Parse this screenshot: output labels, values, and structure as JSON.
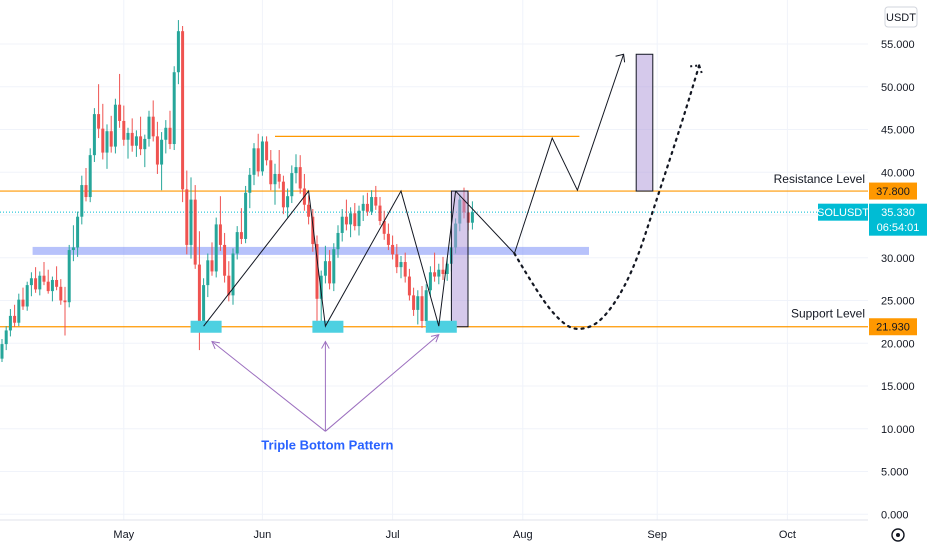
{
  "chart_data": {
    "type": "candlestick",
    "symbol": "SOLUSDT",
    "currency": "USDT",
    "x_labels": [
      "May",
      "Jun",
      "Jul",
      "Aug",
      "Sep",
      "Oct"
    ],
    "y_ticks": [
      "55.000",
      "50.000",
      "45.000",
      "40.000",
      "35.000",
      "30.000",
      "25.000",
      "20.000",
      "15.000",
      "10.000",
      "5.000",
      "0.000"
    ],
    "ylim": [
      0,
      58
    ],
    "last_price": "35.330",
    "countdown": "06:54:01",
    "resistance_level": "37.800",
    "support_level": "21.930",
    "annotations": {
      "resistance_label": "Resistance Level",
      "support_label": "Support Level",
      "pattern_label": "Triple Bottom Pattern"
    },
    "colors": {
      "up": "#26a69a",
      "down": "#ef5350",
      "level_line": "#ff9800",
      "price_line": "#00bcd4",
      "zone": "#7b8ff7",
      "bottom_marker": "#4dd0e1",
      "target_box": "#b39ddb",
      "arrow_pattern": "#9c6fbf",
      "label_blue": "#2962ff"
    },
    "candles": [
      {
        "o": 18.2,
        "h": 20.5,
        "l": 17.8,
        "c": 19.9
      },
      {
        "o": 19.9,
        "h": 22.0,
        "l": 19.2,
        "c": 21.5
      },
      {
        "o": 21.5,
        "h": 24.0,
        "l": 20.8,
        "c": 23.2
      },
      {
        "o": 23.2,
        "h": 24.5,
        "l": 21.9,
        "c": 22.4
      },
      {
        "o": 22.4,
        "h": 25.8,
        "l": 22.0,
        "c": 25.1
      },
      {
        "o": 25.1,
        "h": 26.5,
        "l": 23.9,
        "c": 24.3
      },
      {
        "o": 24.3,
        "h": 27.2,
        "l": 23.8,
        "c": 26.8
      },
      {
        "o": 26.8,
        "h": 28.3,
        "l": 25.5,
        "c": 27.6
      },
      {
        "o": 27.6,
        "h": 28.9,
        "l": 25.9,
        "c": 26.3
      },
      {
        "o": 26.3,
        "h": 28.4,
        "l": 25.6,
        "c": 27.9
      },
      {
        "o": 27.9,
        "h": 29.5,
        "l": 26.8,
        "c": 27.2
      },
      {
        "o": 27.2,
        "h": 28.6,
        "l": 25.8,
        "c": 26.1
      },
      {
        "o": 26.1,
        "h": 27.8,
        "l": 24.9,
        "c": 27.4
      },
      {
        "o": 27.4,
        "h": 29.0,
        "l": 26.2,
        "c": 26.6
      },
      {
        "o": 26.6,
        "h": 27.5,
        "l": 24.5,
        "c": 25.0
      },
      {
        "o": 25.0,
        "h": 26.6,
        "l": 20.9,
        "c": 24.8
      },
      {
        "o": 24.8,
        "h": 31.5,
        "l": 24.2,
        "c": 30.9
      },
      {
        "o": 30.9,
        "h": 33.8,
        "l": 29.6,
        "c": 31.2
      },
      {
        "o": 31.2,
        "h": 35.4,
        "l": 30.1,
        "c": 34.8
      },
      {
        "o": 34.8,
        "h": 39.6,
        "l": 33.9,
        "c": 38.5
      },
      {
        "o": 38.5,
        "h": 40.5,
        "l": 36.6,
        "c": 37.1
      },
      {
        "o": 37.1,
        "h": 42.8,
        "l": 36.5,
        "c": 42.0
      },
      {
        "o": 42.0,
        "h": 47.5,
        "l": 41.2,
        "c": 46.8
      },
      {
        "o": 46.8,
        "h": 50.3,
        "l": 44.0,
        "c": 45.1
      },
      {
        "o": 45.1,
        "h": 48.0,
        "l": 41.5,
        "c": 42.3
      },
      {
        "o": 42.3,
        "h": 45.6,
        "l": 40.4,
        "c": 44.8
      },
      {
        "o": 44.8,
        "h": 46.6,
        "l": 42.3,
        "c": 43.0
      },
      {
        "o": 43.0,
        "h": 48.6,
        "l": 42.2,
        "c": 47.9
      },
      {
        "o": 47.9,
        "h": 51.5,
        "l": 45.2,
        "c": 46.0
      },
      {
        "o": 46.0,
        "h": 47.8,
        "l": 43.1,
        "c": 43.8
      },
      {
        "o": 43.8,
        "h": 45.2,
        "l": 41.6,
        "c": 44.6
      },
      {
        "o": 44.6,
        "h": 46.3,
        "l": 42.4,
        "c": 43.1
      },
      {
        "o": 43.1,
        "h": 44.9,
        "l": 41.8,
        "c": 44.2
      },
      {
        "o": 44.2,
        "h": 46.5,
        "l": 42.0,
        "c": 42.7
      },
      {
        "o": 42.7,
        "h": 44.4,
        "l": 40.6,
        "c": 43.9
      },
      {
        "o": 43.9,
        "h": 47.2,
        "l": 43.0,
        "c": 46.5
      },
      {
        "o": 46.5,
        "h": 48.4,
        "l": 43.6,
        "c": 44.2
      },
      {
        "o": 44.2,
        "h": 45.9,
        "l": 39.8,
        "c": 40.9
      },
      {
        "o": 40.9,
        "h": 44.7,
        "l": 37.9,
        "c": 43.8
      },
      {
        "o": 43.8,
        "h": 46.1,
        "l": 42.2,
        "c": 45.2
      },
      {
        "o": 45.2,
        "h": 47.2,
        "l": 42.7,
        "c": 43.3
      },
      {
        "o": 43.3,
        "h": 52.4,
        "l": 42.6,
        "c": 51.7
      },
      {
        "o": 51.7,
        "h": 57.8,
        "l": 50.3,
        "c": 56.5
      },
      {
        "o": 56.5,
        "h": 57.1,
        "l": 36.5,
        "c": 38.0
      },
      {
        "o": 38.0,
        "h": 40.2,
        "l": 30.4,
        "c": 31.5
      },
      {
        "o": 31.5,
        "h": 39.4,
        "l": 29.9,
        "c": 36.8
      },
      {
        "o": 36.8,
        "h": 38.5,
        "l": 28.7,
        "c": 29.2
      },
      {
        "o": 29.2,
        "h": 33.1,
        "l": 19.2,
        "c": 22.1
      },
      {
        "o": 22.1,
        "h": 27.6,
        "l": 21.4,
        "c": 26.8
      },
      {
        "o": 26.8,
        "h": 30.5,
        "l": 25.4,
        "c": 29.7
      },
      {
        "o": 29.7,
        "h": 31.8,
        "l": 27.9,
        "c": 28.4
      },
      {
        "o": 28.4,
        "h": 34.7,
        "l": 27.7,
        "c": 33.9
      },
      {
        "o": 33.9,
        "h": 37.2,
        "l": 30.8,
        "c": 31.5
      },
      {
        "o": 31.5,
        "h": 32.9,
        "l": 27.1,
        "c": 27.9
      },
      {
        "o": 27.9,
        "h": 29.6,
        "l": 24.9,
        "c": 25.6
      },
      {
        "o": 25.6,
        "h": 31.1,
        "l": 24.5,
        "c": 30.5
      },
      {
        "o": 30.5,
        "h": 33.7,
        "l": 29.8,
        "c": 33.0
      },
      {
        "o": 33.0,
        "h": 35.8,
        "l": 31.6,
        "c": 32.2
      },
      {
        "o": 32.2,
        "h": 38.4,
        "l": 31.7,
        "c": 37.6
      },
      {
        "o": 37.6,
        "h": 40.5,
        "l": 35.8,
        "c": 39.7
      },
      {
        "o": 39.7,
        "h": 43.4,
        "l": 38.5,
        "c": 42.8
      },
      {
        "o": 42.8,
        "h": 44.5,
        "l": 39.5,
        "c": 40.1
      },
      {
        "o": 40.1,
        "h": 44.2,
        "l": 39.6,
        "c": 43.6
      },
      {
        "o": 43.6,
        "h": 44.2,
        "l": 40.8,
        "c": 41.4
      },
      {
        "o": 41.4,
        "h": 42.6,
        "l": 37.9,
        "c": 38.6
      },
      {
        "o": 38.6,
        "h": 41.0,
        "l": 36.2,
        "c": 39.8
      },
      {
        "o": 39.8,
        "h": 42.6,
        "l": 38.1,
        "c": 38.9
      },
      {
        "o": 38.9,
        "h": 39.6,
        "l": 35.1,
        "c": 35.9
      },
      {
        "o": 35.9,
        "h": 38.1,
        "l": 34.7,
        "c": 37.2
      },
      {
        "o": 37.2,
        "h": 40.8,
        "l": 36.4,
        "c": 39.9
      },
      {
        "o": 39.9,
        "h": 42.1,
        "l": 38.7,
        "c": 40.6
      },
      {
        "o": 40.6,
        "h": 42.0,
        "l": 37.5,
        "c": 38.1
      },
      {
        "o": 38.1,
        "h": 39.8,
        "l": 35.5,
        "c": 36.2
      },
      {
        "o": 36.2,
        "h": 37.3,
        "l": 33.9,
        "c": 34.8
      },
      {
        "o": 34.8,
        "h": 35.7,
        "l": 30.7,
        "c": 31.6
      },
      {
        "o": 31.6,
        "h": 32.6,
        "l": 21.5,
        "c": 25.2
      },
      {
        "o": 25.2,
        "h": 28.5,
        "l": 22.5,
        "c": 27.9
      },
      {
        "o": 27.9,
        "h": 31.4,
        "l": 27.0,
        "c": 29.6
      },
      {
        "o": 29.6,
        "h": 30.9,
        "l": 26.3,
        "c": 27.0
      },
      {
        "o": 27.0,
        "h": 31.7,
        "l": 26.1,
        "c": 31.0
      },
      {
        "o": 31.0,
        "h": 33.8,
        "l": 30.0,
        "c": 32.9
      },
      {
        "o": 32.9,
        "h": 35.7,
        "l": 31.9,
        "c": 34.8
      },
      {
        "o": 34.8,
        "h": 36.8,
        "l": 33.2,
        "c": 33.9
      },
      {
        "o": 33.9,
        "h": 35.9,
        "l": 32.4,
        "c": 35.2
      },
      {
        "o": 35.2,
        "h": 36.4,
        "l": 33.2,
        "c": 33.7
      },
      {
        "o": 33.7,
        "h": 36.1,
        "l": 32.6,
        "c": 35.5
      },
      {
        "o": 35.5,
        "h": 37.3,
        "l": 34.3,
        "c": 36.3
      },
      {
        "o": 36.3,
        "h": 37.6,
        "l": 34.9,
        "c": 35.4
      },
      {
        "o": 35.4,
        "h": 37.9,
        "l": 35.0,
        "c": 37.1
      },
      {
        "o": 37.1,
        "h": 38.4,
        "l": 35.6,
        "c": 36.1
      },
      {
        "o": 36.1,
        "h": 37.1,
        "l": 33.8,
        "c": 34.3
      },
      {
        "o": 34.3,
        "h": 35.5,
        "l": 32.1,
        "c": 32.8
      },
      {
        "o": 32.8,
        "h": 34.0,
        "l": 30.9,
        "c": 31.5
      },
      {
        "o": 31.5,
        "h": 32.6,
        "l": 29.8,
        "c": 30.4
      },
      {
        "o": 30.4,
        "h": 31.6,
        "l": 28.2,
        "c": 28.9
      },
      {
        "o": 28.9,
        "h": 30.2,
        "l": 27.6,
        "c": 29.5
      },
      {
        "o": 29.5,
        "h": 30.6,
        "l": 27.1,
        "c": 27.8
      },
      {
        "o": 27.8,
        "h": 28.7,
        "l": 25.0,
        "c": 25.6
      },
      {
        "o": 25.6,
        "h": 26.5,
        "l": 23.2,
        "c": 23.9
      },
      {
        "o": 23.9,
        "h": 26.2,
        "l": 22.2,
        "c": 25.5
      },
      {
        "o": 25.5,
        "h": 26.7,
        "l": 21.8,
        "c": 22.6
      },
      {
        "o": 22.6,
        "h": 26.9,
        "l": 22.1,
        "c": 26.2
      },
      {
        "o": 26.2,
        "h": 29.0,
        "l": 25.5,
        "c": 28.3
      },
      {
        "o": 28.3,
        "h": 30.6,
        "l": 27.2,
        "c": 27.8
      },
      {
        "o": 27.8,
        "h": 29.3,
        "l": 26.9,
        "c": 28.6
      },
      {
        "o": 28.6,
        "h": 30.1,
        "l": 27.4,
        "c": 28.1
      },
      {
        "o": 28.1,
        "h": 29.9,
        "l": 27.3,
        "c": 29.3
      },
      {
        "o": 29.3,
        "h": 31.8,
        "l": 28.4,
        "c": 31.2
      },
      {
        "o": 31.2,
        "h": 34.6,
        "l": 30.5,
        "c": 34.0
      },
      {
        "o": 34.0,
        "h": 37.4,
        "l": 33.1,
        "c": 36.8
      },
      {
        "o": 36.8,
        "h": 38.2,
        "l": 34.6,
        "c": 35.3
      },
      {
        "o": 35.3,
        "h": 37.6,
        "l": 33.2,
        "c": 34.1
      },
      {
        "o": 34.1,
        "h": 36.6,
        "l": 33.3,
        "c": 35.33
      }
    ],
    "zone": {
      "value": 30.8,
      "from_index": 3,
      "to_index": 135
    },
    "upper_line": {
      "value": 44.2,
      "from_index": 65,
      "to_index": 137
    },
    "bottom_markers": [
      {
        "index": 48,
        "value": 21.93
      },
      {
        "index": 77,
        "value": 21.93
      },
      {
        "index": 104,
        "value": 21.93
      }
    ],
    "pattern_zigzag": [
      {
        "index": 48,
        "value": 22.0
      },
      {
        "index": 73,
        "value": 37.8
      },
      {
        "index": 77,
        "value": 22.0
      },
      {
        "index": 95,
        "value": 37.8
      },
      {
        "index": 104,
        "value": 22.0
      },
      {
        "index": 108,
        "value": 37.8
      }
    ],
    "measure_boxes": [
      {
        "from_index": 107,
        "to_index": 110,
        "low": 21.93,
        "high": 37.8
      },
      {
        "from_index": 151,
        "to_index": 154,
        "low": 37.8,
        "high": 53.8
      }
    ],
    "projection_solid": [
      {
        "index": 108,
        "value": 37.8
      },
      {
        "index": 122,
        "value": 30.5
      },
      {
        "index": 131,
        "value": 44.0
      },
      {
        "index": 137,
        "value": 37.9
      },
      {
        "index": 148,
        "value": 53.8
      }
    ],
    "projection_dotted": [
      {
        "index": 122,
        "value": 30.5
      },
      {
        "index": 128,
        "value": 25.5
      },
      {
        "index": 133,
        "value": 22.5
      },
      {
        "index": 137,
        "value": 21.4
      },
      {
        "index": 143,
        "value": 22.5
      },
      {
        "index": 150,
        "value": 28.0
      },
      {
        "index": 156,
        "value": 37.0
      },
      {
        "index": 162,
        "value": 46.0
      },
      {
        "index": 166,
        "value": 52.5
      }
    ],
    "arrow_origin": {
      "index": 77,
      "value": 9.7
    },
    "arrow_targets": [
      {
        "index": 50,
        "value": 20.2
      },
      {
        "index": 77,
        "value": 20.2
      },
      {
        "index": 104,
        "value": 21.0
      }
    ]
  }
}
